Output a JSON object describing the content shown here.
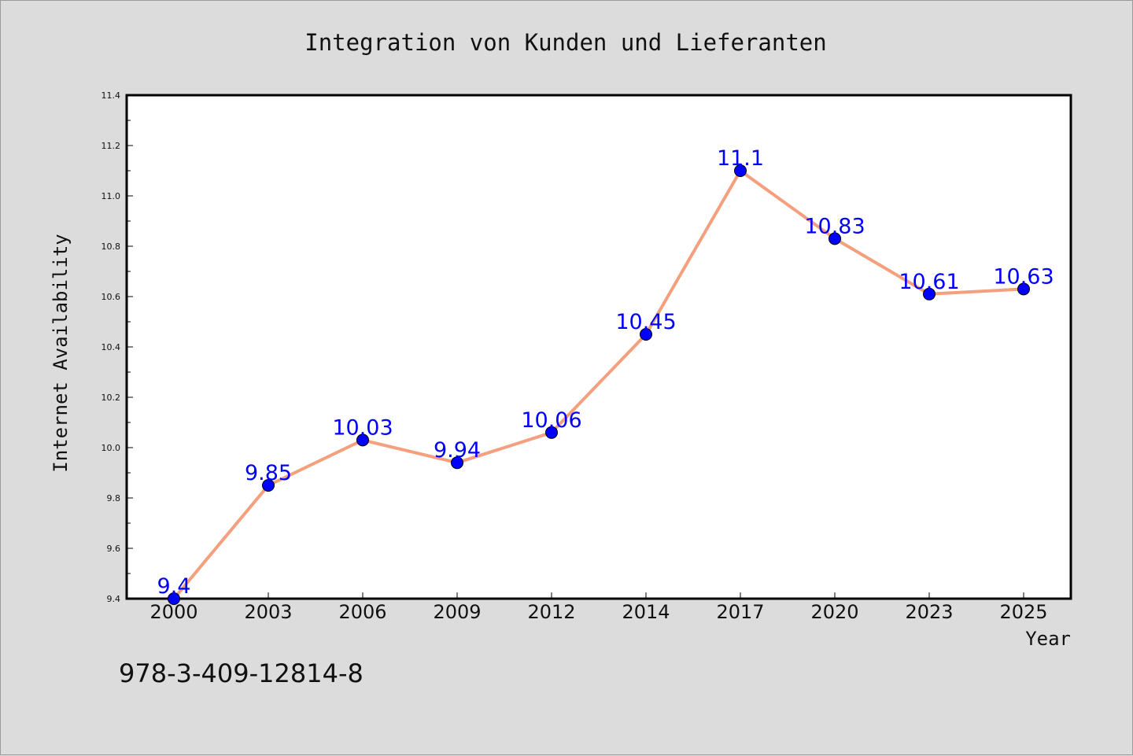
{
  "chart_data": {
    "type": "line",
    "title": "Integration von Kunden und Lieferanten",
    "xlabel": "Year",
    "ylabel": "Internet Availability",
    "categories": [
      "2000",
      "2003",
      "2006",
      "2009",
      "2012",
      "2014",
      "2017",
      "2020",
      "2023",
      "2025"
    ],
    "series": [
      {
        "values": [
          9.4,
          9.85,
          10.03,
          9.94,
          10.06,
          10.45,
          11.1,
          10.83,
          10.61,
          10.63
        ],
        "labels": [
          "9.4",
          "9.85",
          "10.03",
          "9.94",
          "10.06",
          "10.45",
          "11.1",
          "10.83",
          "10.61",
          "10.63"
        ],
        "line_color": "#f4a07e",
        "marker_color": "#0000ff"
      }
    ],
    "ylim": [
      9.4,
      11.4
    ],
    "yticks": [
      "9.4",
      "9.6",
      "9.8",
      "10.0",
      "10.2",
      "10.4",
      "10.6",
      "10.8",
      "11.0",
      "11.2",
      "11.4"
    ],
    "grid": false,
    "legend": "none"
  },
  "footer": {
    "isbn": "978-3-409-12814-8"
  },
  "colors": {
    "background": "#dcdcdc",
    "plot_background": "#ffffff",
    "label_color": "#0000ff"
  }
}
